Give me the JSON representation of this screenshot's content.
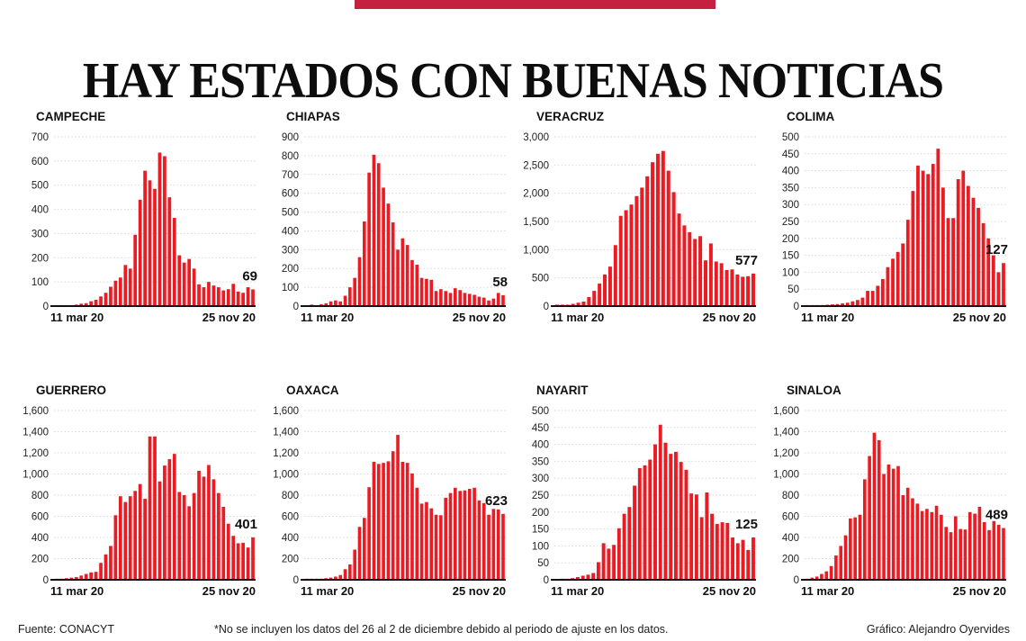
{
  "page": {
    "title": "HAY ESTADOS CON BUENAS NOTICIAS",
    "accent_color": "#c5203f",
    "bar_color": "#ea1b22"
  },
  "footer": {
    "source": "Fuente: CONACYT",
    "note": "*No se incluyen los datos del 26 al 2 de diciembre debido al periodo de ajuste en los datos.",
    "credit": "Gráfico: Alejandro Oyervides"
  },
  "chart_data": [
    {
      "type": "bar",
      "title": "CAMPECHE",
      "x_start": "11 mar 20",
      "x_end": "25 nov 20",
      "ylim": [
        0,
        700
      ],
      "ytick_step": 100,
      "grid": true,
      "end_label": "69",
      "values": [
        4,
        4,
        4,
        4,
        6,
        10,
        12,
        20,
        26,
        40,
        55,
        80,
        105,
        118,
        170,
        155,
        295,
        440,
        560,
        520,
        485,
        635,
        620,
        450,
        365,
        210,
        180,
        195,
        155,
        90,
        78,
        100,
        85,
        78,
        65,
        70,
        92,
        60,
        55,
        78,
        69
      ]
    },
    {
      "type": "bar",
      "title": "CHIAPAS",
      "x_start": "11 mar 20",
      "x_end": "25 nov 20",
      "ylim": [
        0,
        900
      ],
      "ytick_step": 100,
      "grid": true,
      "end_label": "58",
      "values": [
        5,
        8,
        4,
        10,
        15,
        25,
        30,
        25,
        55,
        100,
        150,
        260,
        450,
        710,
        805,
        760,
        630,
        545,
        445,
        300,
        360,
        325,
        245,
        220,
        150,
        145,
        140,
        80,
        90,
        80,
        70,
        95,
        85,
        70,
        65,
        60,
        50,
        45,
        30,
        40,
        70,
        58
      ]
    },
    {
      "type": "bar",
      "title": "VERACRUZ",
      "x_start": "11 mar 20",
      "x_end": "25 nov 20",
      "ylim": [
        0,
        3000
      ],
      "ytick_step": 500,
      "grid": true,
      "end_label": "577",
      "values": [
        25,
        25,
        25,
        40,
        60,
        80,
        160,
        270,
        400,
        560,
        700,
        1080,
        1600,
        1700,
        1800,
        1950,
        2100,
        2300,
        2550,
        2700,
        2750,
        2400,
        2020,
        1640,
        1430,
        1310,
        1190,
        1240,
        810,
        1110,
        790,
        760,
        640,
        650,
        560,
        520,
        530,
        577
      ]
    },
    {
      "type": "bar",
      "title": "COLIMA",
      "x_start": "11 mar 20",
      "x_end": "25 nov 20",
      "ylim": [
        0,
        500
      ],
      "ytick_step": 50,
      "grid": true,
      "end_label": "127",
      "values": [
        3,
        3,
        3,
        3,
        4,
        5,
        6,
        8,
        10,
        14,
        18,
        25,
        45,
        45,
        60,
        80,
        115,
        140,
        160,
        185,
        255,
        340,
        415,
        400,
        390,
        420,
        465,
        350,
        260,
        260,
        375,
        400,
        355,
        320,
        290,
        245,
        200,
        150,
        100,
        127
      ]
    },
    {
      "type": "bar",
      "title": "GUERRERO",
      "x_start": "11 mar 20",
      "x_end": "25 nov 20",
      "ylim": [
        0,
        1600
      ],
      "ytick_step": 200,
      "grid": true,
      "end_label": "401",
      "values": [
        10,
        10,
        15,
        20,
        25,
        40,
        55,
        70,
        75,
        160,
        240,
        320,
        610,
        790,
        735,
        790,
        840,
        905,
        765,
        1355,
        1355,
        930,
        1080,
        1140,
        1190,
        830,
        800,
        695,
        820,
        1030,
        975,
        1085,
        950,
        820,
        690,
        530,
        415,
        345,
        350,
        305,
        401
      ]
    },
    {
      "type": "bar",
      "title": "OAXACA",
      "x_start": "11 mar 20",
      "x_end": "25 nov 20",
      "ylim": [
        0,
        1600
      ],
      "ytick_step": 200,
      "grid": true,
      "end_label": "623",
      "values": [
        10,
        10,
        10,
        10,
        15,
        20,
        30,
        45,
        100,
        145,
        285,
        500,
        585,
        875,
        1115,
        1095,
        1105,
        1120,
        1215,
        1370,
        1115,
        1105,
        1005,
        870,
        720,
        735,
        675,
        615,
        610,
        775,
        820,
        870,
        840,
        845,
        860,
        870,
        750,
        725,
        615,
        670,
        665,
        623
      ]
    },
    {
      "type": "bar",
      "title": "NAYARIT",
      "x_start": "11 mar 20",
      "x_end": "25 nov 20",
      "ylim": [
        0,
        500
      ],
      "ytick_step": 50,
      "grid": true,
      "end_label": "125",
      "values": [
        2,
        3,
        3,
        5,
        8,
        12,
        15,
        20,
        52,
        108,
        92,
        103,
        152,
        195,
        215,
        278,
        330,
        338,
        355,
        400,
        458,
        405,
        372,
        378,
        348,
        325,
        255,
        252,
        185,
        258,
        195,
        165,
        170,
        168,
        125,
        108,
        118,
        88,
        125
      ]
    },
    {
      "type": "bar",
      "title": "SINALOA",
      "x_start": "11 mar 20",
      "x_end": "25 nov 20",
      "ylim": [
        0,
        1600
      ],
      "ytick_step": 200,
      "grid": true,
      "end_label": "489",
      "values": [
        10,
        20,
        30,
        55,
        80,
        130,
        230,
        320,
        420,
        580,
        590,
        615,
        950,
        1170,
        1390,
        1320,
        1000,
        1090,
        1050,
        1075,
        800,
        870,
        770,
        720,
        650,
        670,
        640,
        700,
        615,
        500,
        450,
        600,
        480,
        475,
        640,
        625,
        690,
        545,
        470,
        555,
        520,
        489
      ]
    }
  ]
}
